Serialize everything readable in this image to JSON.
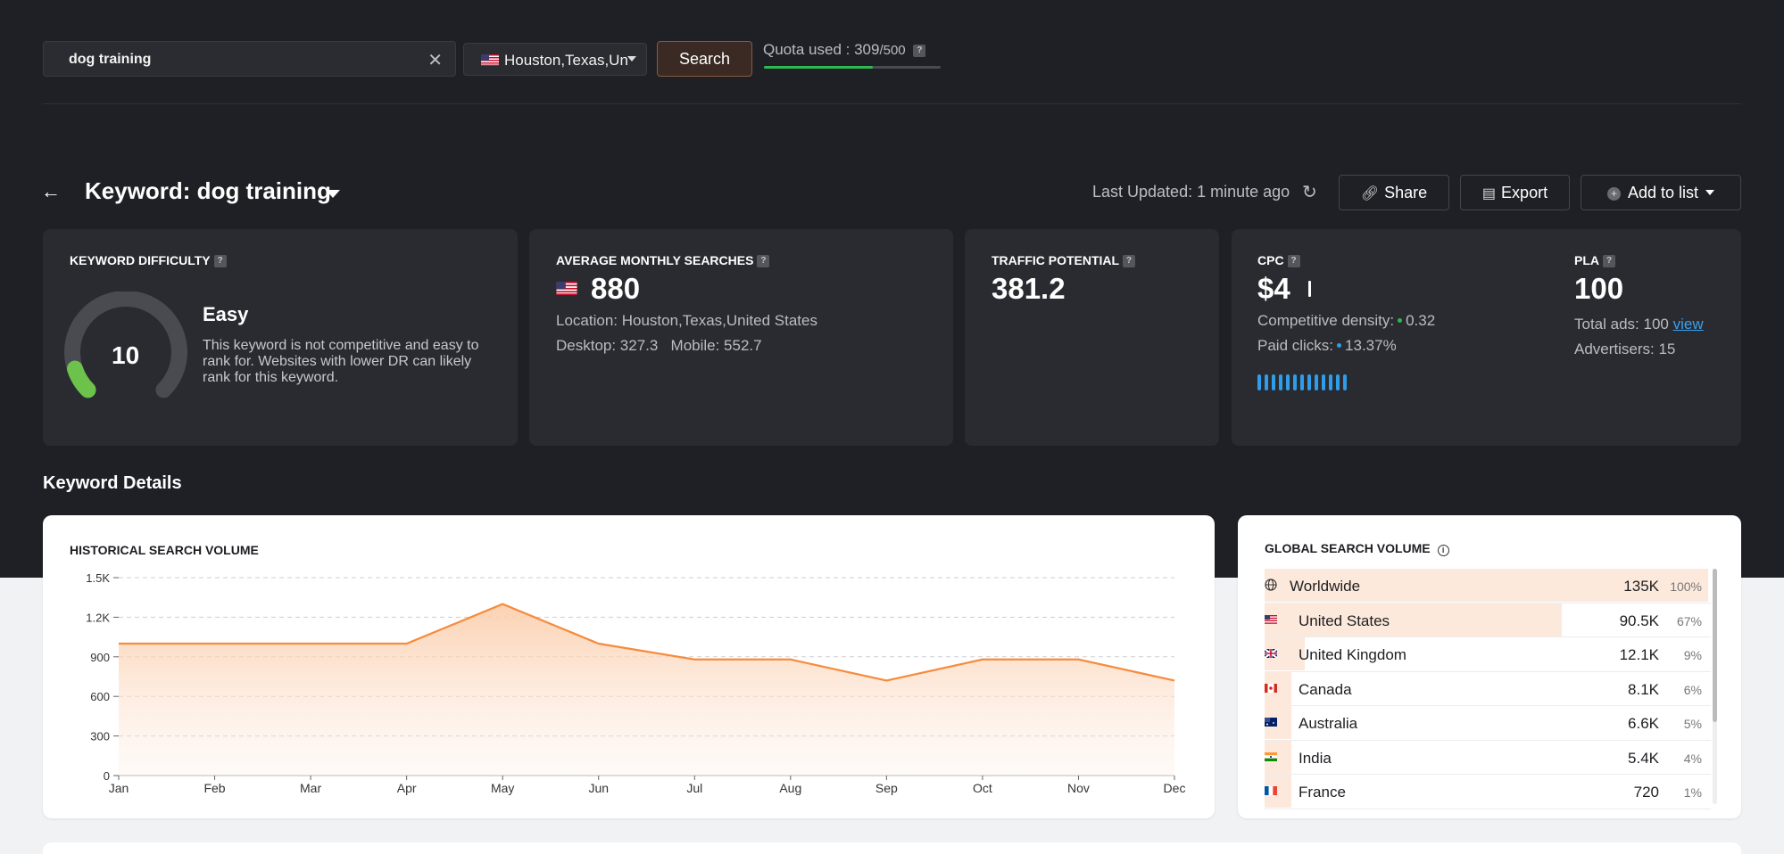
{
  "search": {
    "query": "dog training",
    "location": "Houston,Texas,United States",
    "button_label": "Search",
    "quota_label": "Quota used : 309",
    "quota_total": "/500",
    "quota_fraction": 0.618
  },
  "header": {
    "keyword_title": "Keyword: dog training",
    "last_updated": "Last Updated: 1 minute ago",
    "share_label": "Share",
    "export_label": "Export",
    "add_to_list_label": "Add to list"
  },
  "metrics": {
    "kd": {
      "label": "KEYWORD DIFFICULTY",
      "value": "10",
      "level": "Easy",
      "description": "This keyword is not competitive and easy to rank for. Websites with lower DR can likely rank for this keyword.",
      "score_fraction": 0.1
    },
    "ams": {
      "label": "AVERAGE MONTHLY SEARCHES",
      "value": "880",
      "location": "Location: Houston,Texas,United States",
      "desktop": "Desktop: 327.3",
      "mobile": "Mobile: 552.7"
    },
    "tp": {
      "label": "TRAFFIC POTENTIAL",
      "value": "381.2"
    },
    "cpc": {
      "label": "CPC",
      "value": "$4",
      "competitive_density_label": "Competitive density:",
      "competitive_density": "0.32",
      "paid_clicks_label": "Paid clicks:",
      "paid_clicks": "13.37%"
    },
    "pla": {
      "label": "PLA",
      "value": "100",
      "total_ads": "Total ads: 100",
      "view_link": "view",
      "advertisers": "Advertisers: 15"
    }
  },
  "details_title": "Keyword Details",
  "historical": {
    "title": "HISTORICAL SEARCH VOLUME"
  },
  "chart_data": {
    "type": "area",
    "title": "HISTORICAL SEARCH VOLUME",
    "categories": [
      "Jan",
      "Feb",
      "Mar",
      "Apr",
      "May",
      "Jun",
      "Jul",
      "Aug",
      "Sep",
      "Oct",
      "Nov",
      "Dec"
    ],
    "values": [
      1000,
      1000,
      1000,
      1000,
      1300,
      1000,
      880,
      880,
      720,
      880,
      880,
      720
    ],
    "y_ticks": [
      "0",
      "300",
      "600",
      "900",
      "1.2K",
      "1.5K"
    ],
    "ylim": [
      0,
      1500
    ],
    "grid": true,
    "color": "#f78b3c"
  },
  "global": {
    "title": "GLOBAL SEARCH VOLUME",
    "rows": [
      {
        "name": "Worldwide",
        "volume": "135K",
        "pct": "100%",
        "share": 1.0,
        "flag": "globe"
      },
      {
        "name": "United States",
        "volume": "90.5K",
        "pct": "67%",
        "share": 0.67,
        "flag": "us"
      },
      {
        "name": "United Kingdom",
        "volume": "12.1K",
        "pct": "9%",
        "share": 0.09,
        "flag": "gb"
      },
      {
        "name": "Canada",
        "volume": "8.1K",
        "pct": "6%",
        "share": 0.06,
        "flag": "ca"
      },
      {
        "name": "Australia",
        "volume": "6.6K",
        "pct": "5%",
        "share": 0.05,
        "flag": "au"
      },
      {
        "name": "India",
        "volume": "5.4K",
        "pct": "4%",
        "share": 0.04,
        "flag": "in"
      },
      {
        "name": "France",
        "volume": "720",
        "pct": "1%",
        "share": 0.01,
        "flag": "fr"
      }
    ]
  }
}
